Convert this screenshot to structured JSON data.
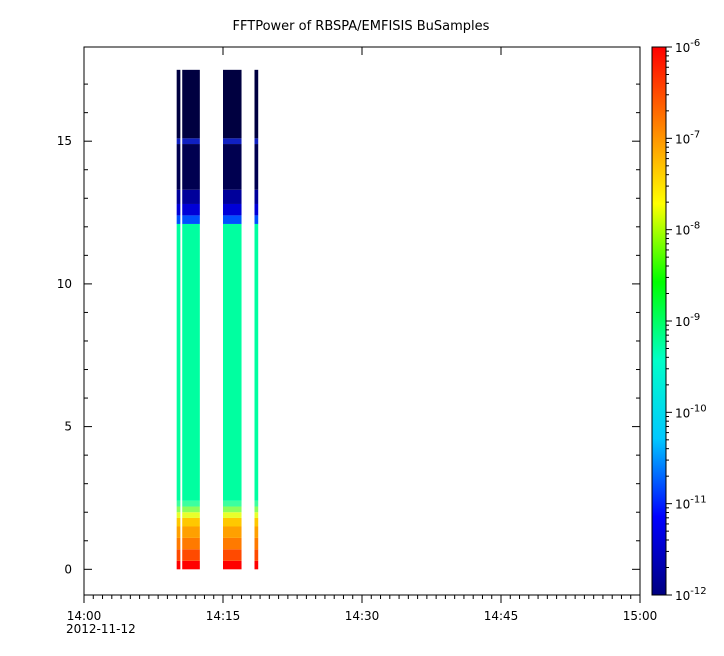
{
  "chart_data": {
    "type": "heatmap",
    "title": "FFTPower of RBSPA/EMFISIS  BuSamples",
    "xlabel": "",
    "ylabel": "",
    "x_range": [
      "14:00",
      "15:00"
    ],
    "x_ticks": [
      {
        "label": "14:00",
        "sublabel": "2012-11-12",
        "minute": 0
      },
      {
        "label": "14:15",
        "minute": 15
      },
      {
        "label": "14:30",
        "minute": 30
      },
      {
        "label": "14:45",
        "minute": 45
      },
      {
        "label": "15:00",
        "minute": 60
      }
    ],
    "ylim": [
      -0.9,
      18.3
    ],
    "y_ticks": [
      0,
      5,
      10,
      15
    ],
    "colorbar": {
      "scale": "log",
      "range": [
        1e-12,
        1e-06
      ],
      "colormap": [
        "#000080",
        "#0000ff",
        "#00c8ff",
        "#00ffc8",
        "#00ff00",
        "#ffff00",
        "#ff8000",
        "#ff0000"
      ],
      "tick_exponents": [
        -12,
        -11,
        -10,
        -9,
        -8,
        -7,
        -6
      ],
      "tick_base": "10"
    },
    "data_extent_y": [
      0,
      17.5
    ],
    "data_intervals_min": [
      [
        10.0,
        10.4
      ],
      [
        10.6,
        12.5
      ],
      [
        15.0,
        17.0
      ],
      [
        18.4,
        18.8
      ]
    ],
    "profile": [
      {
        "y_max": 0.3,
        "color": "#ff0000"
      },
      {
        "y_max": 0.7,
        "color": "#ff4a00"
      },
      {
        "y_max": 1.1,
        "color": "#ff7a00"
      },
      {
        "y_max": 1.5,
        "color": "#ffa000"
      },
      {
        "y_max": 1.8,
        "color": "#ffc800"
      },
      {
        "y_max": 2.0,
        "color": "#e8ff2a"
      },
      {
        "y_max": 2.2,
        "color": "#8cff5a"
      },
      {
        "y_max": 2.4,
        "color": "#3cffa0"
      },
      {
        "y_max": 12.1,
        "color": "#00ffa0"
      },
      {
        "y_max": 12.4,
        "color": "#0050ff"
      },
      {
        "y_max": 12.8,
        "color": "#0000d8"
      },
      {
        "y_max": 13.3,
        "color": "#00009a"
      },
      {
        "y_max": 14.9,
        "color": "#000050"
      },
      {
        "y_max": 15.1,
        "color": "#1020c0"
      },
      {
        "y_max": 17.5,
        "color": "#000040"
      }
    ]
  }
}
